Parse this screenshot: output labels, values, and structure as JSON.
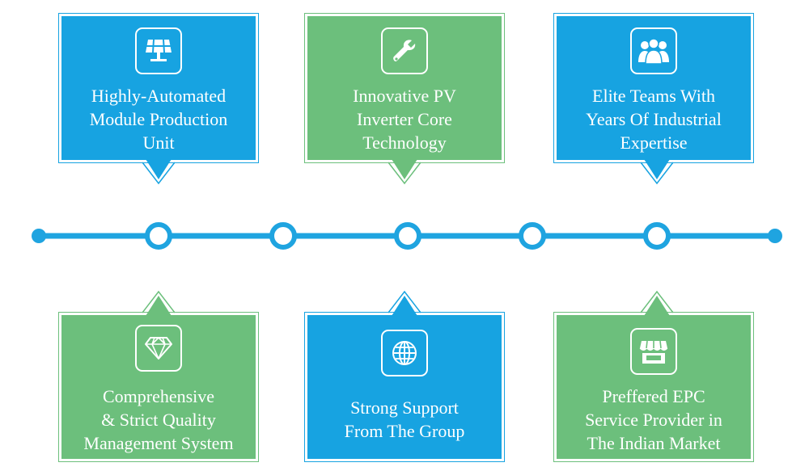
{
  "colors": {
    "blue": "#17a3e1",
    "green": "#6cbf7c",
    "line": "#1fa4e0"
  },
  "top_cards": [
    {
      "label": "Highly-Automated\nModule Production\nUnit",
      "color": "blue",
      "icon": "solar-panel-icon"
    },
    {
      "label": "Innovative PV\nInverter Core\nTechnology",
      "color": "green",
      "icon": "wrench-icon"
    },
    {
      "label": "Elite Teams With\nYears Of Industrial\nExpertise",
      "color": "blue",
      "icon": "team-icon"
    }
  ],
  "bottom_cards": [
    {
      "label": "Comprehensive\n& Strict Quality\nManagement System",
      "color": "green",
      "icon": "diamond-icon"
    },
    {
      "label": "Strong Support\nFrom The Group",
      "color": "blue",
      "icon": "globe-icon"
    },
    {
      "label": "Preffered EPC\nService Provider in\nThe Indian Market",
      "color": "green",
      "icon": "store-icon"
    }
  ],
  "timeline": {
    "nodes": 5
  }
}
